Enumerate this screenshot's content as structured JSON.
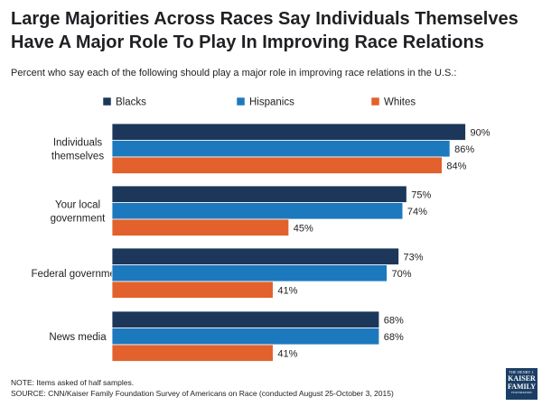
{
  "title": "Large Majorities Across Races Say Individuals Themselves Have A Major Role To Play In Improving Race Relations",
  "subtitle": "Percent who say each of the following should play a major role in improving race relations in the U.S.:",
  "notes": {
    "note": "NOTE: Items asked of half samples.",
    "source": "SOURCE: CNN/Kaiser Family Foundation Survey of Americans on Race (conducted August 25-October 3, 2015)"
  },
  "logo": {
    "line1": "THE HENRY J.",
    "line2a": "KAISER",
    "line2b": "FAMILY",
    "line3": "FOUNDATION"
  },
  "chart_data": {
    "type": "bar",
    "orientation": "horizontal",
    "categories": [
      [
        "Individuals",
        "themselves"
      ],
      [
        "Your local",
        "government"
      ],
      [
        "Federal government"
      ],
      [
        "News media"
      ]
    ],
    "series": [
      {
        "name": "Blacks",
        "color": "#1c3759",
        "values": [
          90,
          75,
          73,
          68
        ]
      },
      {
        "name": "Hispanics",
        "color": "#1d79bd",
        "values": [
          86,
          74,
          70,
          68
        ]
      },
      {
        "name": "Whites",
        "color": "#e2612c",
        "values": [
          84,
          45,
          41,
          41
        ]
      }
    ],
    "value_suffix": "%",
    "xlim": [
      0,
      100
    ],
    "legend_position": "top",
    "gridlines": false
  }
}
